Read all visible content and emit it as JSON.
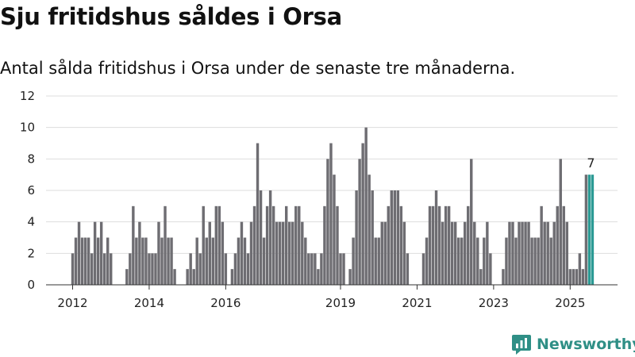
{
  "title": "Sju fritidshus såldes i Orsa",
  "subtitle": "Antal sålda fritidshus i Orsa under de senaste tre månaderna.",
  "brand": {
    "name": "Newsworthy",
    "color": "#2f8f86",
    "logo_icon": "newsworthy-logo-icon"
  },
  "colors": {
    "bar": "#6e6d72",
    "highlight": "#2b9a94",
    "grid": "#dddddd",
    "axis": "#333333"
  },
  "chart_data": {
    "type": "bar",
    "title": "Sju fritidshus såldes i Orsa",
    "subtitle": "Antal sålda fritidshus i Orsa under de senaste tre månaderna.",
    "xlabel": "",
    "ylabel": "",
    "ylim": [
      0,
      12
    ],
    "yticks": [
      0,
      2,
      4,
      6,
      8,
      10,
      12
    ],
    "grid": true,
    "x_start": "2012-01",
    "xticks": [
      {
        "label": "2012",
        "month": "2012-01"
      },
      {
        "label": "2014",
        "month": "2014-01"
      },
      {
        "label": "2016",
        "month": "2016-01"
      },
      {
        "label": "2019",
        "month": "2019-01"
      },
      {
        "label": "2021",
        "month": "2021-01"
      },
      {
        "label": "2023",
        "month": "2023-01"
      },
      {
        "label": "2025",
        "month": "2025-01"
      }
    ],
    "highlight": {
      "from": "2025-07",
      "label": "7"
    },
    "values": [
      2,
      3,
      4,
      3,
      3,
      3,
      2,
      4,
      3,
      4,
      2,
      3,
      2,
      null,
      null,
      null,
      null,
      1,
      2,
      5,
      3,
      4,
      3,
      3,
      2,
      2,
      2,
      4,
      3,
      5,
      3,
      3,
      1,
      null,
      null,
      null,
      1,
      2,
      1,
      3,
      2,
      5,
      3,
      4,
      3,
      5,
      5,
      4,
      2,
      null,
      1,
      2,
      3,
      4,
      3,
      2,
      4,
      5,
      9,
      6,
      3,
      5,
      6,
      5,
      4,
      4,
      4,
      5,
      4,
      4,
      5,
      5,
      4,
      3,
      2,
      2,
      2,
      1,
      2,
      5,
      8,
      9,
      7,
      5,
      2,
      2,
      null,
      1,
      3,
      6,
      8,
      9,
      10,
      7,
      6,
      3,
      3,
      4,
      4,
      5,
      6,
      6,
      6,
      5,
      4,
      2,
      null,
      null,
      null,
      null,
      2,
      3,
      5,
      5,
      6,
      5,
      4,
      5,
      5,
      4,
      4,
      3,
      3,
      4,
      5,
      8,
      4,
      3,
      1,
      3,
      4,
      2,
      null,
      null,
      null,
      1,
      3,
      4,
      4,
      3,
      4,
      4,
      4,
      4,
      3,
      3,
      3,
      5,
      4,
      4,
      3,
      4,
      5,
      8,
      5,
      4,
      1,
      1,
      1,
      2,
      1,
      7,
      7,
      7
    ]
  }
}
